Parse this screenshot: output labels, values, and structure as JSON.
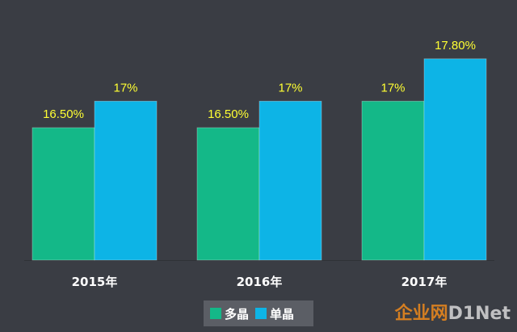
{
  "colors": {
    "background": "#3a3d44",
    "series_multi": "#14b888",
    "series_mono": "#0db4e6",
    "value_label": "#ffff33",
    "category_label": "#ffffff"
  },
  "chart_data": {
    "type": "bar",
    "categories": [
      "2015年",
      "2016年",
      "2017年"
    ],
    "series": [
      {
        "name": "多晶",
        "values": [
          16.5,
          16.5,
          17.0
        ],
        "labels": [
          "16.50%",
          "16.50%",
          "17%"
        ]
      },
      {
        "name": "单晶",
        "values": [
          17.0,
          17.0,
          17.8
        ],
        "labels": [
          "17%",
          "17%",
          "17.80%"
        ]
      }
    ],
    "ylim": [
      14,
      18.3
    ],
    "grid": false,
    "legend": "bottom-center"
  },
  "legend": {
    "items": [
      {
        "label": "多晶"
      },
      {
        "label": "单晶"
      }
    ]
  },
  "watermark": {
    "part_a": "企业网",
    "part_b": "D1Net"
  }
}
